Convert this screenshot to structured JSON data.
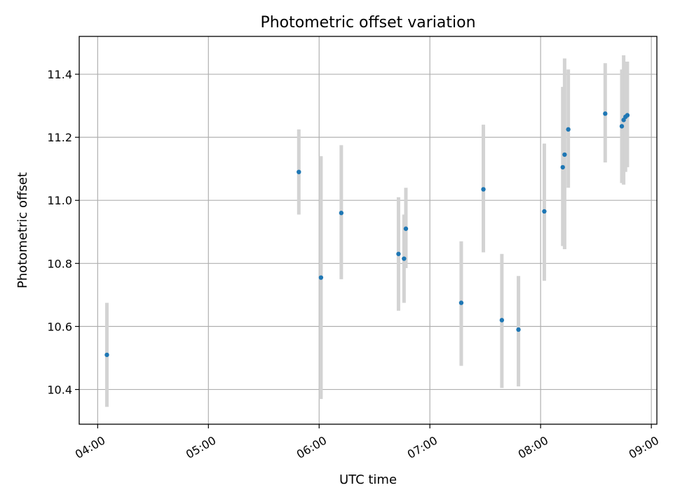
{
  "chart_data": {
    "type": "scatter",
    "title": "Photometric offset variation",
    "xlabel": "UTC time",
    "ylabel": "Photometric offset",
    "x_ticks": [
      "04:00",
      "05:00",
      "06:00",
      "07:00",
      "08:00",
      "09:00"
    ],
    "y_ticks": [
      "10.4",
      "10.6",
      "10.8",
      "11.0",
      "11.2",
      "11.4"
    ],
    "xlim": [
      "03:50",
      "09:03"
    ],
    "ylim": [
      10.29,
      11.52
    ],
    "grid": true,
    "colors": {
      "point": "#1f77b4",
      "errorbar": "#d3d3d3",
      "grid": "#b0b0b0"
    },
    "points": [
      {
        "time": "04:05",
        "y": 10.51,
        "err_low": 10.345,
        "err_high": 10.675
      },
      {
        "time": "05:49",
        "y": 11.09,
        "err_low": 10.955,
        "err_high": 11.225
      },
      {
        "time": "06:01",
        "y": 10.755,
        "err_low": 10.37,
        "err_high": 11.14
      },
      {
        "time": "06:12",
        "y": 10.96,
        "err_low": 10.75,
        "err_high": 11.175
      },
      {
        "time": "06:43",
        "y": 10.83,
        "err_low": 10.65,
        "err_high": 11.01
      },
      {
        "time": "06:46",
        "y": 10.815,
        "err_low": 10.675,
        "err_high": 10.955
      },
      {
        "time": "06:47",
        "y": 10.91,
        "err_low": 10.785,
        "err_high": 11.04
      },
      {
        "time": "07:17",
        "y": 10.675,
        "err_low": 10.475,
        "err_high": 10.87
      },
      {
        "time": "07:29",
        "y": 11.035,
        "err_low": 10.835,
        "err_high": 11.24
      },
      {
        "time": "07:39",
        "y": 10.62,
        "err_low": 10.405,
        "err_high": 10.83
      },
      {
        "time": "07:48",
        "y": 10.59,
        "err_low": 10.41,
        "err_high": 10.76
      },
      {
        "time": "08:02",
        "y": 10.965,
        "err_low": 10.745,
        "err_high": 11.18
      },
      {
        "time": "08:12",
        "y": 11.105,
        "err_low": 10.855,
        "err_high": 11.36
      },
      {
        "time": "08:13",
        "y": 11.145,
        "err_low": 10.845,
        "err_high": 11.45
      },
      {
        "time": "08:15",
        "y": 11.225,
        "err_low": 11.04,
        "err_high": 11.415
      },
      {
        "time": "08:35",
        "y": 11.275,
        "err_low": 11.12,
        "err_high": 11.435
      },
      {
        "time": "08:44",
        "y": 11.235,
        "err_low": 11.055,
        "err_high": 11.415
      },
      {
        "time": "08:45",
        "y": 11.255,
        "err_low": 11.05,
        "err_high": 11.46
      },
      {
        "time": "08:46",
        "y": 11.265,
        "err_low": 11.09,
        "err_high": 11.44
      },
      {
        "time": "08:47",
        "y": 11.27,
        "err_low": 11.105,
        "err_high": 11.44
      }
    ]
  }
}
